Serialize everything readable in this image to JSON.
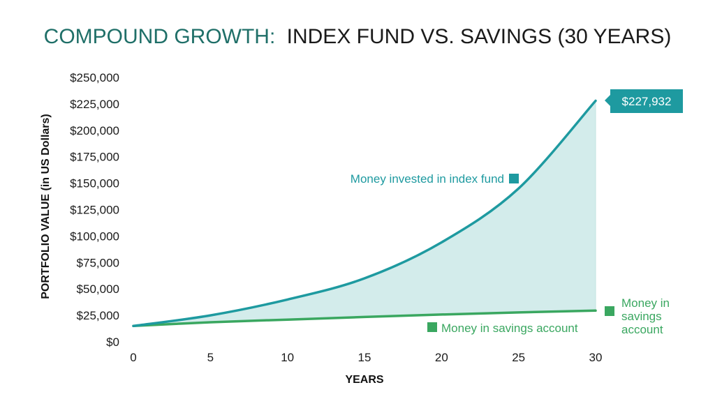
{
  "chart_data": {
    "type": "line",
    "title_part1": "COMPOUND GROWTH:",
    "title_part2": "INDEX FUND VS. SAVINGS (30 YEARS)",
    "xlabel": "YEARS",
    "ylabel": "PORTFOLIO VALUE (in US Dollars)",
    "xlim": [
      0,
      30
    ],
    "ylim": [
      0,
      250000
    ],
    "x_ticks": [
      "0",
      "5",
      "10",
      "15",
      "20",
      "25",
      "30"
    ],
    "y_ticks": [
      "$0",
      "$25,000",
      "$50,000",
      "$75,000",
      "$100,000",
      "$125,000",
      "$150,000",
      "$175,000",
      "$200,000",
      "$225,000",
      "$250,000"
    ],
    "x": [
      0,
      5,
      10,
      15,
      20,
      25,
      30
    ],
    "series": [
      {
        "name": "Money invested in index fund",
        "values": [
          15000,
          25000,
          40000,
          60000,
          94000,
          145000,
          227932
        ],
        "color": "#1e9aa0",
        "fill": "#d3eceb"
      },
      {
        "name": "Money in savings account",
        "values": [
          15000,
          18500,
          21000,
          23500,
          25800,
          27800,
          29500
        ],
        "color": "#3aa760"
      }
    ],
    "end_value_label": "$227,932",
    "savings_end_label_lines": [
      "Money in",
      "savings",
      "account"
    ],
    "title_accent_color": "#1f6f68",
    "title_color": "#1a1a1a"
  }
}
